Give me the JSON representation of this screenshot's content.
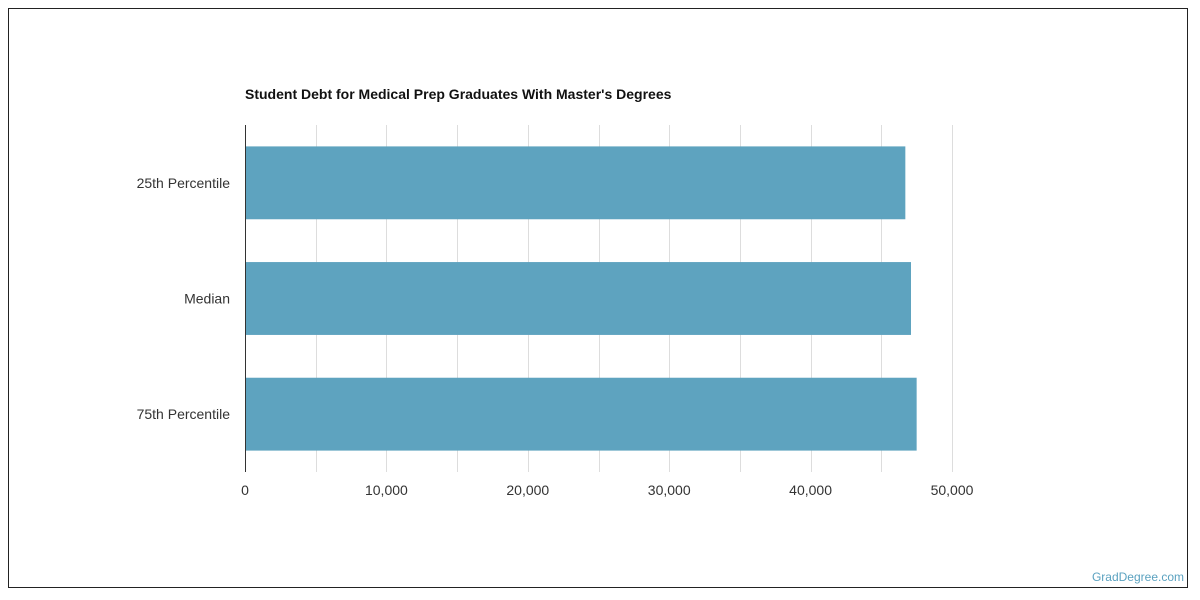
{
  "watermark": "GradDegree.com",
  "chart_data": {
    "type": "bar",
    "orientation": "horizontal",
    "title": "Student Debt for Medical Prep Graduates With Master's Degrees",
    "categories": [
      "25th Percentile",
      "Median",
      "75th Percentile"
    ],
    "values": [
      46700,
      47100,
      47500
    ],
    "xlim": [
      0,
      50000
    ],
    "xticks": [
      0,
      10000,
      20000,
      30000,
      40000,
      50000
    ],
    "xtick_labels": [
      "0",
      "10,000",
      "20,000",
      "30,000",
      "40,000",
      "50,000"
    ],
    "xlabel": "",
    "ylabel": "",
    "grid": true,
    "bar_color": "#5ea3bf",
    "grid_color": "#dddddd",
    "axis_color": "#333333"
  }
}
